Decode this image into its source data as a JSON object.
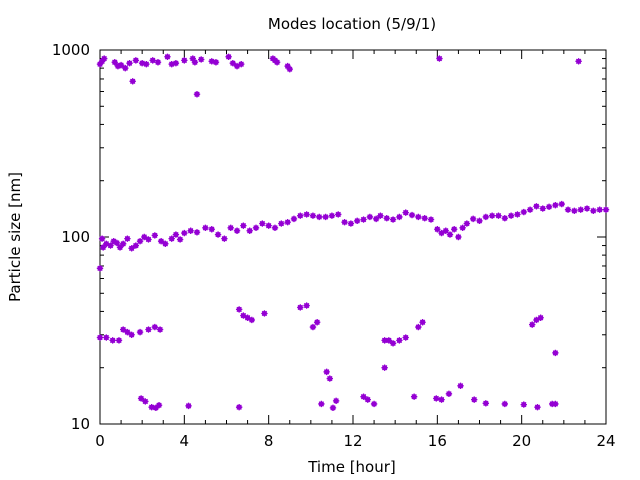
{
  "chart_data": {
    "type": "scatter",
    "title": "Modes location (5/9/1)",
    "xlabel": "Time [hour]",
    "ylabel": "Particle size [nm]",
    "xlim": [
      0,
      24
    ],
    "ylim": [
      10,
      1000
    ],
    "y_scale": "log",
    "grid": false,
    "legend": "none",
    "marker_color": "#9400d3",
    "x_ticks": [
      "0",
      "4",
      "8",
      "12",
      "16",
      "20",
      "24"
    ],
    "y_ticks": [
      "10",
      "100",
      "1000"
    ],
    "series": [
      {
        "x": [
          0.0,
          0.1,
          0.2,
          0.7,
          0.85,
          1.0,
          1.2,
          1.4,
          1.55,
          1.7,
          2.0,
          2.2,
          2.5,
          2.75,
          3.2,
          3.4,
          3.6,
          4.0,
          4.4,
          4.5,
          4.6,
          4.8,
          5.3,
          5.5,
          6.1,
          6.3,
          6.5,
          6.7,
          8.2,
          8.3,
          8.4,
          8.9,
          9.0,
          16.1,
          22.7
        ],
        "y": [
          840,
          870,
          900,
          860,
          820,
          830,
          800,
          850,
          680,
          880,
          850,
          840,
          880,
          860,
          920,
          840,
          850,
          880,
          900,
          860,
          580,
          890,
          870,
          860,
          920,
          850,
          820,
          840,
          900,
          880,
          860,
          820,
          790,
          900,
          870
        ]
      },
      {
        "x": [
          0.0,
          0.1,
          0.15,
          0.3,
          0.5,
          0.65,
          0.8,
          0.95,
          1.1,
          1.3,
          1.5,
          1.7,
          1.9,
          2.1,
          2.3,
          2.6,
          2.9,
          3.1,
          3.4,
          3.6,
          3.8,
          4.0,
          4.3,
          4.6,
          5.0,
          5.3,
          5.6,
          5.9,
          6.2,
          6.5,
          6.8,
          7.1,
          7.4,
          7.7,
          8.0,
          8.3,
          8.6,
          8.9,
          9.2,
          9.5,
          9.8,
          10.1,
          10.4,
          10.7,
          11.0,
          11.3,
          11.6,
          11.9,
          12.2,
          12.5,
          12.8,
          13.1,
          13.3,
          13.6,
          13.9,
          14.2,
          14.5,
          14.8,
          15.1,
          15.4,
          15.7,
          16.0,
          16.2,
          16.4,
          16.6,
          16.8,
          17.0,
          17.2,
          17.4,
          17.7,
          18.0,
          18.3,
          18.6,
          18.9,
          19.2,
          19.5,
          19.8,
          20.1,
          20.4,
          20.7,
          21.0,
          21.3,
          21.6,
          21.9,
          22.2,
          22.5,
          22.8,
          23.1,
          23.4,
          23.7,
          24.0
        ],
        "y": [
          68,
          98,
          88,
          92,
          90,
          95,
          93,
          88,
          92,
          98,
          87,
          90,
          95,
          100,
          97,
          102,
          95,
          92,
          98,
          103,
          97,
          105,
          108,
          106,
          112,
          110,
          103,
          98,
          112,
          108,
          115,
          108,
          112,
          118,
          115,
          112,
          118,
          120,
          125,
          130,
          132,
          130,
          128,
          128,
          130,
          132,
          120,
          118,
          122,
          124,
          128,
          125,
          130,
          126,
          124,
          128,
          135,
          131,
          128,
          126,
          124,
          110,
          105,
          108,
          103,
          110,
          100,
          112,
          118,
          125,
          122,
          128,
          130,
          130,
          126,
          130,
          132,
          136,
          140,
          146,
          142,
          145,
          148,
          150,
          140,
          138,
          140,
          142,
          138,
          140,
          140
        ]
      },
      {
        "x": [
          0.0,
          0.3,
          0.6,
          0.9,
          1.1,
          1.3,
          1.5,
          1.9,
          2.3,
          2.6,
          2.85,
          6.6,
          6.8,
          7.0,
          7.2,
          7.8,
          9.5,
          9.8,
          10.1,
          10.3,
          13.5,
          13.7,
          13.9,
          14.2,
          14.5,
          15.1,
          15.3,
          20.5,
          20.7,
          20.9,
          21.6
        ],
        "y": [
          29,
          29,
          28,
          28,
          32,
          31,
          30,
          31,
          32,
          33,
          32,
          41,
          38,
          37,
          36,
          39,
          42,
          43,
          33,
          35,
          28,
          28,
          27,
          28,
          29,
          33,
          35,
          34,
          36,
          37,
          24
        ]
      },
      {
        "x": [
          1.95,
          2.15,
          2.45,
          2.65,
          2.8,
          4.2,
          6.6,
          10.5,
          10.75,
          10.9,
          11.05,
          11.2,
          12.5,
          12.7,
          13.0,
          13.5,
          14.9,
          15.95,
          16.2,
          16.55,
          17.1,
          17.75,
          18.3,
          19.2,
          20.1,
          20.75,
          21.45,
          21.6
        ],
        "y": [
          13.7,
          13.2,
          12.3,
          12.2,
          12.6,
          12.5,
          12.3,
          12.8,
          19.0,
          17.5,
          12.2,
          13.3,
          14.0,
          13.5,
          12.8,
          20.0,
          14.0,
          13.7,
          13.5,
          14.5,
          16.0,
          13.5,
          12.9,
          12.8,
          12.7,
          12.3,
          12.8,
          12.8
        ]
      }
    ]
  }
}
